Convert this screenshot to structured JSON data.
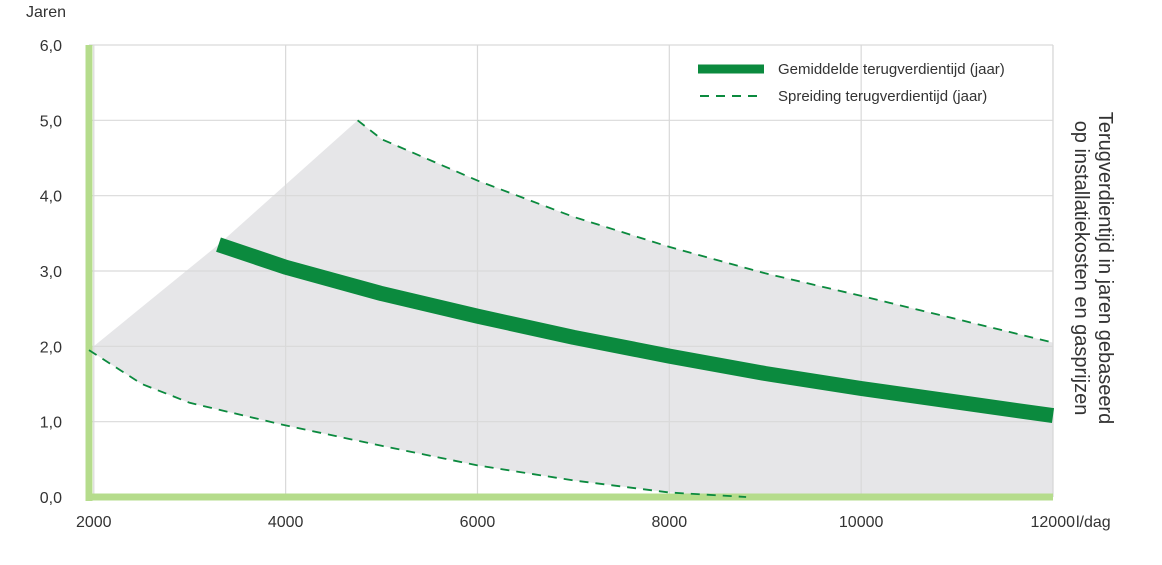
{
  "chart_data": {
    "type": "area",
    "title": "",
    "xlabel": "",
    "ylabel": "Jaren",
    "x_unit": "l/dag",
    "side_title": [
      "Terugverdientijd in jaren gebaseerd",
      "op installatiekosten en gasprijzen"
    ],
    "xlim": [
      1950,
      12000
    ],
    "ylim": [
      0,
      6
    ],
    "x_ticks": [
      2000,
      4000,
      6000,
      8000,
      10000,
      12000
    ],
    "y_ticks": [
      0,
      1,
      2,
      3,
      4,
      5,
      6
    ],
    "y_tick_labels": [
      "0,0",
      "1,0",
      "2,0",
      "3,0",
      "4,0",
      "5,0",
      "6,0"
    ],
    "grid": true,
    "legend_position": "top-right",
    "series": [
      {
        "name": "Gemiddelde terugverdientijd (jaar)",
        "style": "solid",
        "color": "#0b8a3e",
        "x": [
          3300,
          4000,
          5000,
          6000,
          7000,
          8000,
          9000,
          10000,
          11000,
          12000
        ],
        "y": [
          3.35,
          3.05,
          2.7,
          2.4,
          2.12,
          1.87,
          1.64,
          1.44,
          1.26,
          1.08
        ]
      },
      {
        "name": "Spreiding terugverdientijd (jaar)",
        "style": "dashed",
        "color": "#0b8a3e",
        "bands": [
          {
            "x": [
              4750,
              5000,
              6000,
              7000,
              8000,
              9000,
              10000,
              11000,
              12000
            ],
            "y": [
              5.0,
              4.75,
              4.2,
              3.72,
              3.32,
              2.97,
              2.67,
              2.36,
              2.05
            ]
          },
          {
            "x": [
              1950,
              2500,
              3000,
              4000,
              5000,
              6000,
              7000,
              8000,
              8800
            ],
            "y": [
              1.95,
              1.5,
              1.25,
              0.95,
              0.68,
              0.42,
              0.22,
              0.06,
              0.0
            ]
          }
        ]
      }
    ],
    "envelope": {
      "color": "#e6e6e8",
      "upper": {
        "x": [
          1950,
          3300,
          4750,
          5000,
          6000,
          7000,
          8000,
          9000,
          10000,
          11000,
          12000
        ],
        "y": [
          1.95,
          3.35,
          5.0,
          4.75,
          4.2,
          3.72,
          3.32,
          2.97,
          2.67,
          2.36,
          2.05
        ]
      },
      "lower": {
        "x": [
          1950,
          2500,
          3000,
          4000,
          5000,
          6000,
          7000,
          8000,
          8800,
          12000
        ],
        "y": [
          1.95,
          1.5,
          1.25,
          0.95,
          0.68,
          0.42,
          0.22,
          0.06,
          0.0,
          0.0
        ]
      }
    },
    "colors": {
      "axis_accent": "#b5dc8c",
      "grid": "#d9d9d9",
      "line": "#0b8a3e"
    }
  }
}
